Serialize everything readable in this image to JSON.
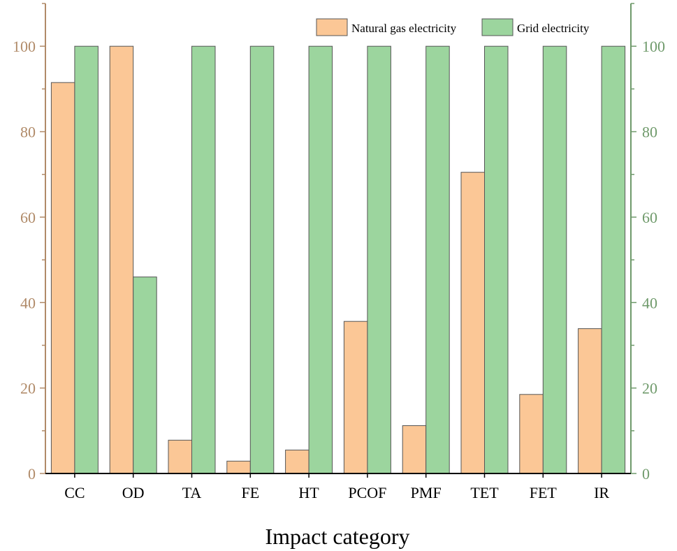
{
  "chart_data": {
    "type": "bar",
    "xlabel": "Impact category",
    "ylabel": "",
    "categories": [
      "CC",
      "OD",
      "TA",
      "FE",
      "HT",
      "PCOF",
      "PMF",
      "TET",
      "FET",
      "IR"
    ],
    "series": [
      {
        "name": "Natural gas electricity",
        "color": "#FBC796",
        "axis": "left",
        "values": [
          91.5,
          100,
          7.8,
          2.9,
          5.5,
          35.6,
          11.2,
          70.5,
          18.5,
          33.9
        ]
      },
      {
        "name": "Grid electricity",
        "color": "#9CD59E",
        "axis": "right",
        "values": [
          100,
          46.0,
          100,
          100,
          100,
          100,
          100,
          100,
          100,
          100
        ]
      }
    ],
    "ylim": [
      0,
      110
    ],
    "yticks": [
      0,
      20,
      40,
      60,
      80,
      100
    ],
    "left_axis_color": "#B08A68",
    "right_axis_color": "#6F9A6B",
    "bar_edge_color": "#555555",
    "legend_position": "top-right",
    "grid": false
  }
}
